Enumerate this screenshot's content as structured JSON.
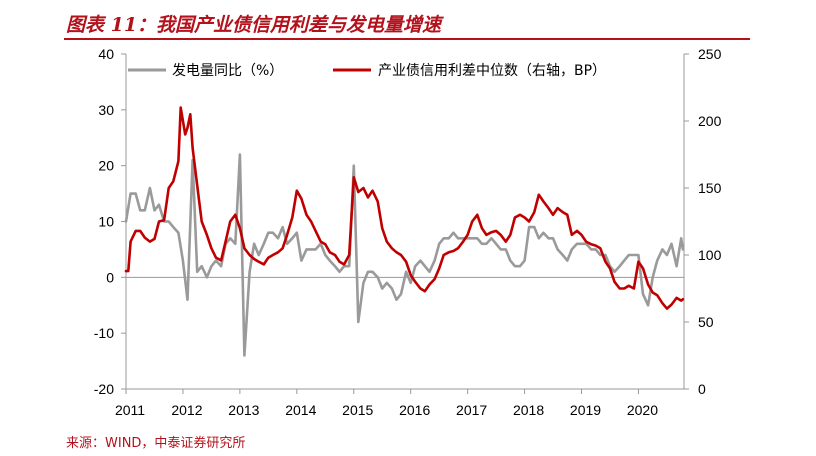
{
  "title": "图表 11：我国产业债信用利差与发电量增速",
  "source": "来源：WIND，中泰证券研究所",
  "chart_data": {
    "type": "line",
    "title": "图表 11：我国产业债信用利差与发电量增速",
    "xlabel": "",
    "ylabel": "",
    "grid": false,
    "legend_position": "top",
    "x_tick_labels": [
      "2011",
      "2012",
      "2013",
      "2014",
      "2015",
      "2016",
      "2017",
      "2018",
      "2019",
      "2020"
    ],
    "x_range": [
      2011,
      2020.8
    ],
    "left_axis": {
      "range": [
        -20,
        40
      ],
      "ticks": [
        "-20",
        "-10",
        "0",
        "10",
        "20",
        "30",
        "40"
      ]
    },
    "right_axis": {
      "range": [
        0,
        250
      ],
      "ticks": [
        "0",
        "50",
        "100",
        "150",
        "200",
        "250"
      ]
    },
    "series": [
      {
        "name": "发电量同比（%）",
        "axis": "left",
        "color": "#9a9a9a",
        "points": [
          [
            2011.0,
            10
          ],
          [
            2011.08,
            15
          ],
          [
            2011.17,
            15
          ],
          [
            2011.25,
            12
          ],
          [
            2011.33,
            12
          ],
          [
            2011.42,
            16
          ],
          [
            2011.5,
            12
          ],
          [
            2011.58,
            13
          ],
          [
            2011.67,
            10
          ],
          [
            2011.75,
            10
          ],
          [
            2011.83,
            9
          ],
          [
            2011.92,
            8
          ],
          [
            2012.0,
            3
          ],
          [
            2012.08,
            -4
          ],
          [
            2012.17,
            21
          ],
          [
            2012.25,
            1
          ],
          [
            2012.33,
            2
          ],
          [
            2012.42,
            0
          ],
          [
            2012.5,
            2
          ],
          [
            2012.58,
            3
          ],
          [
            2012.67,
            2
          ],
          [
            2012.75,
            6
          ],
          [
            2012.83,
            7
          ],
          [
            2012.92,
            6
          ],
          [
            2013.0,
            22
          ],
          [
            2013.08,
            -14
          ],
          [
            2013.17,
            1
          ],
          [
            2013.25,
            6
          ],
          [
            2013.33,
            4
          ],
          [
            2013.42,
            6
          ],
          [
            2013.5,
            8
          ],
          [
            2013.58,
            8
          ],
          [
            2013.67,
            7
          ],
          [
            2013.75,
            9
          ],
          [
            2013.83,
            6
          ],
          [
            2013.92,
            7
          ],
          [
            2014.0,
            8
          ],
          [
            2014.08,
            3
          ],
          [
            2014.17,
            5
          ],
          [
            2014.25,
            5
          ],
          [
            2014.33,
            5
          ],
          [
            2014.42,
            6
          ],
          [
            2014.5,
            4
          ],
          [
            2014.58,
            3
          ],
          [
            2014.67,
            2
          ],
          [
            2014.75,
            1
          ],
          [
            2014.83,
            2
          ],
          [
            2014.92,
            2
          ],
          [
            2015.0,
            20
          ],
          [
            2015.08,
            -8
          ],
          [
            2015.17,
            -1
          ],
          [
            2015.25,
            1
          ],
          [
            2015.33,
            1
          ],
          [
            2015.42,
            0
          ],
          [
            2015.5,
            -2
          ],
          [
            2015.58,
            -1
          ],
          [
            2015.67,
            -2
          ],
          [
            2015.75,
            -4
          ],
          [
            2015.83,
            -3
          ],
          [
            2015.92,
            1
          ],
          [
            2016.0,
            -1
          ],
          [
            2016.08,
            2
          ],
          [
            2016.17,
            3
          ],
          [
            2016.25,
            2
          ],
          [
            2016.33,
            1
          ],
          [
            2016.42,
            3
          ],
          [
            2016.5,
            6
          ],
          [
            2016.58,
            7
          ],
          [
            2016.67,
            7
          ],
          [
            2016.75,
            8
          ],
          [
            2016.83,
            7
          ],
          [
            2016.92,
            7
          ],
          [
            2017.0,
            7
          ],
          [
            2017.08,
            7
          ],
          [
            2017.17,
            7
          ],
          [
            2017.25,
            6
          ],
          [
            2017.33,
            6
          ],
          [
            2017.42,
            7
          ],
          [
            2017.5,
            6
          ],
          [
            2017.58,
            5
          ],
          [
            2017.67,
            5
          ],
          [
            2017.75,
            3
          ],
          [
            2017.83,
            2
          ],
          [
            2017.92,
            2
          ],
          [
            2018.0,
            3
          ],
          [
            2018.08,
            9
          ],
          [
            2018.17,
            9
          ],
          [
            2018.25,
            7
          ],
          [
            2018.33,
            8
          ],
          [
            2018.42,
            7
          ],
          [
            2018.5,
            7
          ],
          [
            2018.58,
            5
          ],
          [
            2018.67,
            4
          ],
          [
            2018.75,
            3
          ],
          [
            2018.83,
            5
          ],
          [
            2018.92,
            6
          ],
          [
            2019.0,
            6
          ],
          [
            2019.08,
            6
          ],
          [
            2019.17,
            5
          ],
          [
            2019.25,
            5
          ],
          [
            2019.33,
            4
          ],
          [
            2019.42,
            4
          ],
          [
            2019.5,
            2
          ],
          [
            2019.58,
            1
          ],
          [
            2019.67,
            2
          ],
          [
            2019.75,
            3
          ],
          [
            2019.83,
            4
          ],
          [
            2019.92,
            4
          ],
          [
            2020.0,
            4
          ],
          [
            2020.08,
            -3
          ],
          [
            2020.17,
            -5
          ],
          [
            2020.25,
            0
          ],
          [
            2020.33,
            3
          ],
          [
            2020.42,
            5
          ],
          [
            2020.5,
            4
          ],
          [
            2020.58,
            6
          ],
          [
            2020.67,
            2
          ],
          [
            2020.75,
            7
          ],
          [
            2020.78,
            5
          ]
        ]
      },
      {
        "name": "产业债信用利差中位数（右轴，BP）",
        "axis": "right",
        "color": "#c00000",
        "points": [
          [
            2011.0,
            88
          ],
          [
            2011.04,
            88
          ],
          [
            2011.08,
            110
          ],
          [
            2011.17,
            118
          ],
          [
            2011.25,
            118
          ],
          [
            2011.33,
            113
          ],
          [
            2011.42,
            110
          ],
          [
            2011.5,
            112
          ],
          [
            2011.58,
            125
          ],
          [
            2011.67,
            126
          ],
          [
            2011.75,
            150
          ],
          [
            2011.83,
            155
          ],
          [
            2011.92,
            170
          ],
          [
            2011.96,
            210
          ],
          [
            2012.04,
            190
          ],
          [
            2012.08,
            195
          ],
          [
            2012.13,
            205
          ],
          [
            2012.17,
            180
          ],
          [
            2012.25,
            152
          ],
          [
            2012.33,
            125
          ],
          [
            2012.42,
            115
          ],
          [
            2012.5,
            105
          ],
          [
            2012.58,
            98
          ],
          [
            2012.67,
            96
          ],
          [
            2012.75,
            110
          ],
          [
            2012.83,
            125
          ],
          [
            2012.92,
            130
          ],
          [
            2013.0,
            120
          ],
          [
            2013.08,
            105
          ],
          [
            2013.17,
            100
          ],
          [
            2013.25,
            97
          ],
          [
            2013.33,
            95
          ],
          [
            2013.42,
            93
          ],
          [
            2013.5,
            98
          ],
          [
            2013.58,
            100
          ],
          [
            2013.67,
            102
          ],
          [
            2013.75,
            105
          ],
          [
            2013.83,
            115
          ],
          [
            2013.92,
            128
          ],
          [
            2014.0,
            148
          ],
          [
            2014.08,
            142
          ],
          [
            2014.17,
            130
          ],
          [
            2014.25,
            125
          ],
          [
            2014.33,
            118
          ],
          [
            2014.42,
            110
          ],
          [
            2014.5,
            108
          ],
          [
            2014.58,
            102
          ],
          [
            2014.67,
            100
          ],
          [
            2014.75,
            95
          ],
          [
            2014.83,
            93
          ],
          [
            2014.92,
            100
          ],
          [
            2015.0,
            158
          ],
          [
            2015.08,
            147
          ],
          [
            2015.17,
            150
          ],
          [
            2015.25,
            143
          ],
          [
            2015.33,
            148
          ],
          [
            2015.42,
            140
          ],
          [
            2015.5,
            120
          ],
          [
            2015.58,
            110
          ],
          [
            2015.67,
            105
          ],
          [
            2015.75,
            102
          ],
          [
            2015.83,
            100
          ],
          [
            2015.92,
            95
          ],
          [
            2016.0,
            85
          ],
          [
            2016.08,
            80
          ],
          [
            2016.17,
            75
          ],
          [
            2016.25,
            73
          ],
          [
            2016.33,
            78
          ],
          [
            2016.42,
            82
          ],
          [
            2016.5,
            90
          ],
          [
            2016.58,
            100
          ],
          [
            2016.67,
            102
          ],
          [
            2016.75,
            103
          ],
          [
            2016.83,
            105
          ],
          [
            2016.92,
            110
          ],
          [
            2017.0,
            115
          ],
          [
            2017.08,
            125
          ],
          [
            2017.17,
            130
          ],
          [
            2017.25,
            120
          ],
          [
            2017.33,
            115
          ],
          [
            2017.42,
            117
          ],
          [
            2017.5,
            118
          ],
          [
            2017.58,
            115
          ],
          [
            2017.67,
            110
          ],
          [
            2017.75,
            115
          ],
          [
            2017.83,
            128
          ],
          [
            2017.92,
            130
          ],
          [
            2018.0,
            128
          ],
          [
            2018.08,
            125
          ],
          [
            2018.17,
            132
          ],
          [
            2018.25,
            145
          ],
          [
            2018.33,
            140
          ],
          [
            2018.42,
            135
          ],
          [
            2018.5,
            130
          ],
          [
            2018.58,
            135
          ],
          [
            2018.67,
            132
          ],
          [
            2018.75,
            130
          ],
          [
            2018.83,
            115
          ],
          [
            2018.92,
            118
          ],
          [
            2019.0,
            115
          ],
          [
            2019.08,
            110
          ],
          [
            2019.17,
            108
          ],
          [
            2019.25,
            107
          ],
          [
            2019.33,
            105
          ],
          [
            2019.42,
            95
          ],
          [
            2019.5,
            90
          ],
          [
            2019.58,
            80
          ],
          [
            2019.67,
            75
          ],
          [
            2019.75,
            75
          ],
          [
            2019.83,
            77
          ],
          [
            2019.92,
            75
          ],
          [
            2020.0,
            95
          ],
          [
            2020.08,
            90
          ],
          [
            2020.17,
            78
          ],
          [
            2020.25,
            72
          ],
          [
            2020.33,
            70
          ],
          [
            2020.42,
            64
          ],
          [
            2020.5,
            60
          ],
          [
            2020.58,
            63
          ],
          [
            2020.67,
            68
          ],
          [
            2020.75,
            66
          ],
          [
            2020.78,
            67
          ]
        ]
      }
    ]
  }
}
